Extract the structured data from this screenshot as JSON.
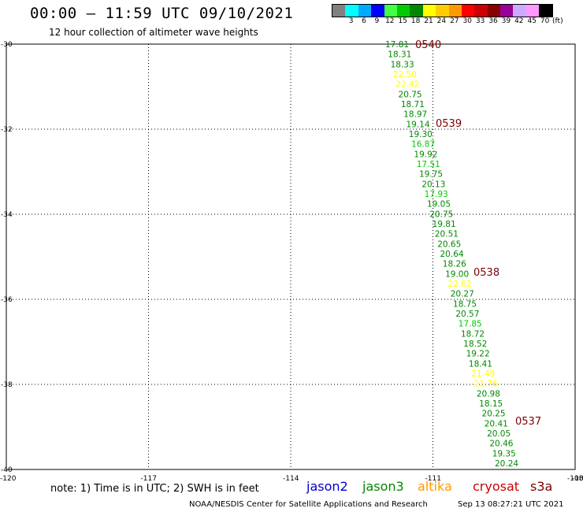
{
  "header": {
    "title": "00:00 – 11:59 UTC 09/10/2021",
    "subtitle": "12 hour collection of altimeter wave heights"
  },
  "colorbar": {
    "unit": "(ft)",
    "labels": [
      "3",
      "6",
      "9",
      "12",
      "15",
      "18",
      "21",
      "24",
      "27",
      "30",
      "33",
      "36",
      "39",
      "42",
      "45",
      "70"
    ],
    "colors": [
      "#808080",
      "#00ffff",
      "#00aaff",
      "#0000ff",
      "#44ff44",
      "#00cc00",
      "#008800",
      "#ffff00",
      "#ffcc00",
      "#ff9900",
      "#ff0000",
      "#cc0000",
      "#880000",
      "#990099",
      "#ccaaff",
      "#ff99ff",
      "#000000"
    ]
  },
  "map": {
    "lat_labels": [
      "-30",
      "-32",
      "-34",
      "-36",
      "-38",
      "-40"
    ],
    "lon_labels": [
      "-120",
      "-117",
      "-114",
      "-111",
      "-108",
      "-10"
    ],
    "time_labels": [
      {
        "text": "0540",
        "lat": -30.0
      },
      {
        "text": "0539",
        "lat": -31.85
      },
      {
        "text": "0538",
        "lat": -35.35
      },
      {
        "text": "0537",
        "lat": -38.85
      }
    ],
    "wave_heights": [
      {
        "v": "17.81",
        "c": "#008800"
      },
      {
        "v": "18.31",
        "c": "#008800"
      },
      {
        "v": "18.33",
        "c": "#008800"
      },
      {
        "v": "22.50",
        "c": "#ffff00"
      },
      {
        "v": "22.42",
        "c": "#ffff00"
      },
      {
        "v": "20.75",
        "c": "#008800"
      },
      {
        "v": "18.71",
        "c": "#008800"
      },
      {
        "v": "18.97",
        "c": "#008800"
      },
      {
        "v": "19.14",
        "c": "#008800"
      },
      {
        "v": "19.30",
        "c": "#008800"
      },
      {
        "v": "16.87",
        "c": "#00cc00"
      },
      {
        "v": "19.92",
        "c": "#008800"
      },
      {
        "v": "17.51",
        "c": "#00cc00"
      },
      {
        "v": "19.75",
        "c": "#008800"
      },
      {
        "v": "20.13",
        "c": "#008800"
      },
      {
        "v": "17.93",
        "c": "#00cc00"
      },
      {
        "v": "19.05",
        "c": "#008800"
      },
      {
        "v": "20.75",
        "c": "#008800"
      },
      {
        "v": "19.81",
        "c": "#008800"
      },
      {
        "v": "20.51",
        "c": "#008800"
      },
      {
        "v": "20.65",
        "c": "#008800"
      },
      {
        "v": "20.64",
        "c": "#008800"
      },
      {
        "v": "18.26",
        "c": "#008800"
      },
      {
        "v": "19.00",
        "c": "#008800"
      },
      {
        "v": "22.62",
        "c": "#ffff00"
      },
      {
        "v": "20.27",
        "c": "#008800"
      },
      {
        "v": "18.75",
        "c": "#008800"
      },
      {
        "v": "20.57",
        "c": "#008800"
      },
      {
        "v": "17.85",
        "c": "#00cc00"
      },
      {
        "v": "18.72",
        "c": "#008800"
      },
      {
        "v": "18.52",
        "c": "#008800"
      },
      {
        "v": "19.22",
        "c": "#008800"
      },
      {
        "v": "18.41",
        "c": "#008800"
      },
      {
        "v": "21.49",
        "c": "#ffff00"
      },
      {
        "v": "21.76",
        "c": "#ffff00"
      },
      {
        "v": "20.98",
        "c": "#008800"
      },
      {
        "v": "18.15",
        "c": "#008800"
      },
      {
        "v": "20.25",
        "c": "#008800"
      },
      {
        "v": "20.41",
        "c": "#008800"
      },
      {
        "v": "20.05",
        "c": "#008800"
      },
      {
        "v": "20.46",
        "c": "#008800"
      },
      {
        "v": "19.35",
        "c": "#008800"
      },
      {
        "v": "20.24",
        "c": "#008800"
      }
    ]
  },
  "notes": {
    "note": "note:  1) Time is in UTC;  2) SWH is in feet"
  },
  "satellites": [
    {
      "name": "jason2",
      "color": "#0000cc"
    },
    {
      "name": "jason3",
      "color": "#008800"
    },
    {
      "name": "altika",
      "color": "#ff9900"
    },
    {
      "name": "cryosat",
      "color": "#cc0000"
    },
    {
      "name": "s3a",
      "color": "#7a0000"
    }
  ],
  "footer": {
    "credit": "NOAA/NESDIS Center for Satellite Applications and Research",
    "timestamp": "Sep 13 08:27:21 UTC 2021"
  }
}
